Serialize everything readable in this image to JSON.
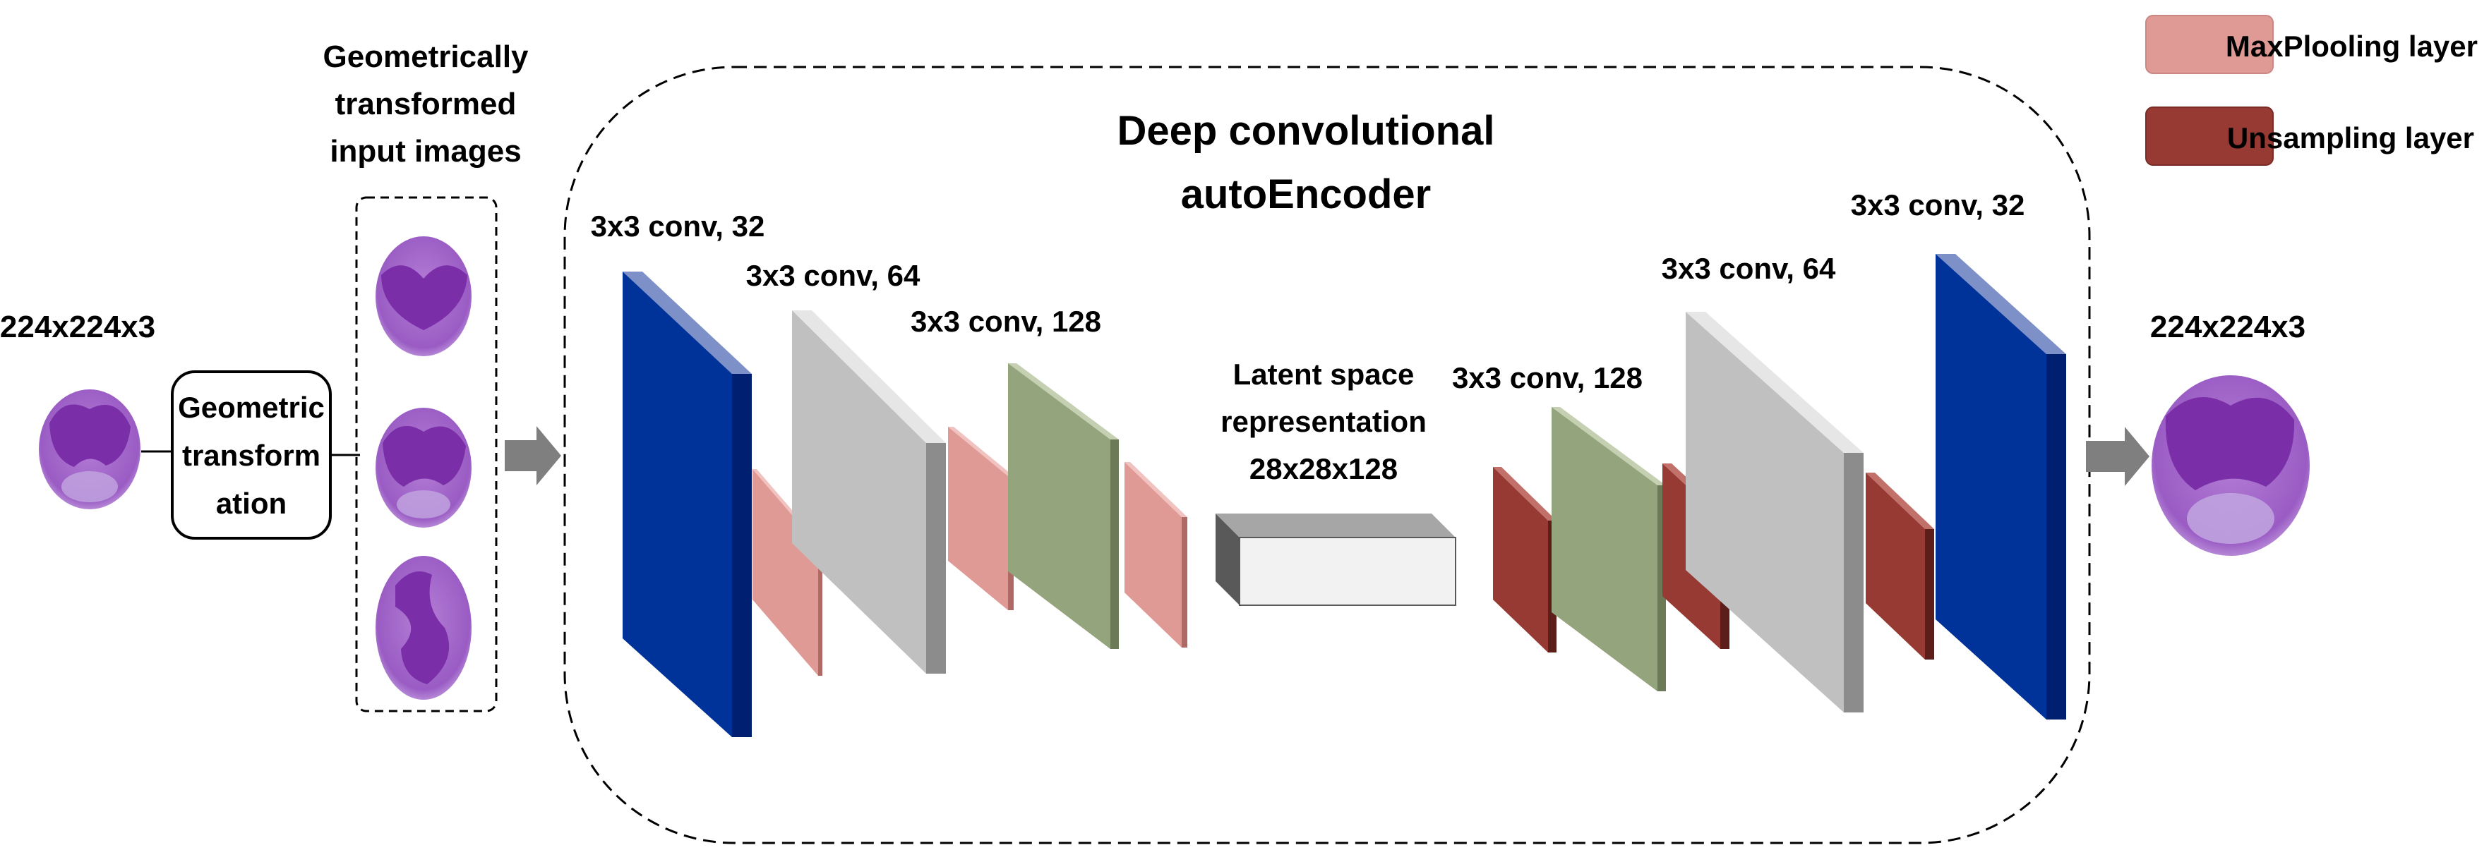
{
  "labels": {
    "input_size": "224x224x3",
    "output_size": "224x224x3",
    "geo_transform_line1": "Geometric",
    "geo_transform_line2": "transform",
    "geo_transform_line3": "ation",
    "geo_title_line1": "Geometrically",
    "geo_title_line2": "transformed",
    "geo_title_line3": "input images",
    "ae_title_line1": "Deep convolutional",
    "ae_title_line2": "autoEncoder",
    "enc_conv1": "3x3 conv, 32",
    "enc_conv2": "3x3 conv, 64",
    "enc_conv3": "3x3 conv, 128",
    "latent_line1": "Latent space",
    "latent_line2": "representation",
    "latent_line3": "28x28x128",
    "dec_conv3": "3x3 conv, 128",
    "dec_conv2": "3x3 conv, 64",
    "dec_conv1": "3x3 conv, 32"
  },
  "legend": {
    "maxpool_label": "MaxPlooling layer",
    "upsample_label": "Unsampling layer"
  },
  "colors": {
    "conv32": "#003399",
    "conv64": "#c0c0c0",
    "conv128": "#94a47c",
    "maxpool": "#e09a96",
    "upsample": "#963a33",
    "latent": "#f2f2f2",
    "arrow": "#7f7f7f",
    "cell_body": "#a46cc8",
    "cell_nucleus": "#7a2ea8"
  }
}
